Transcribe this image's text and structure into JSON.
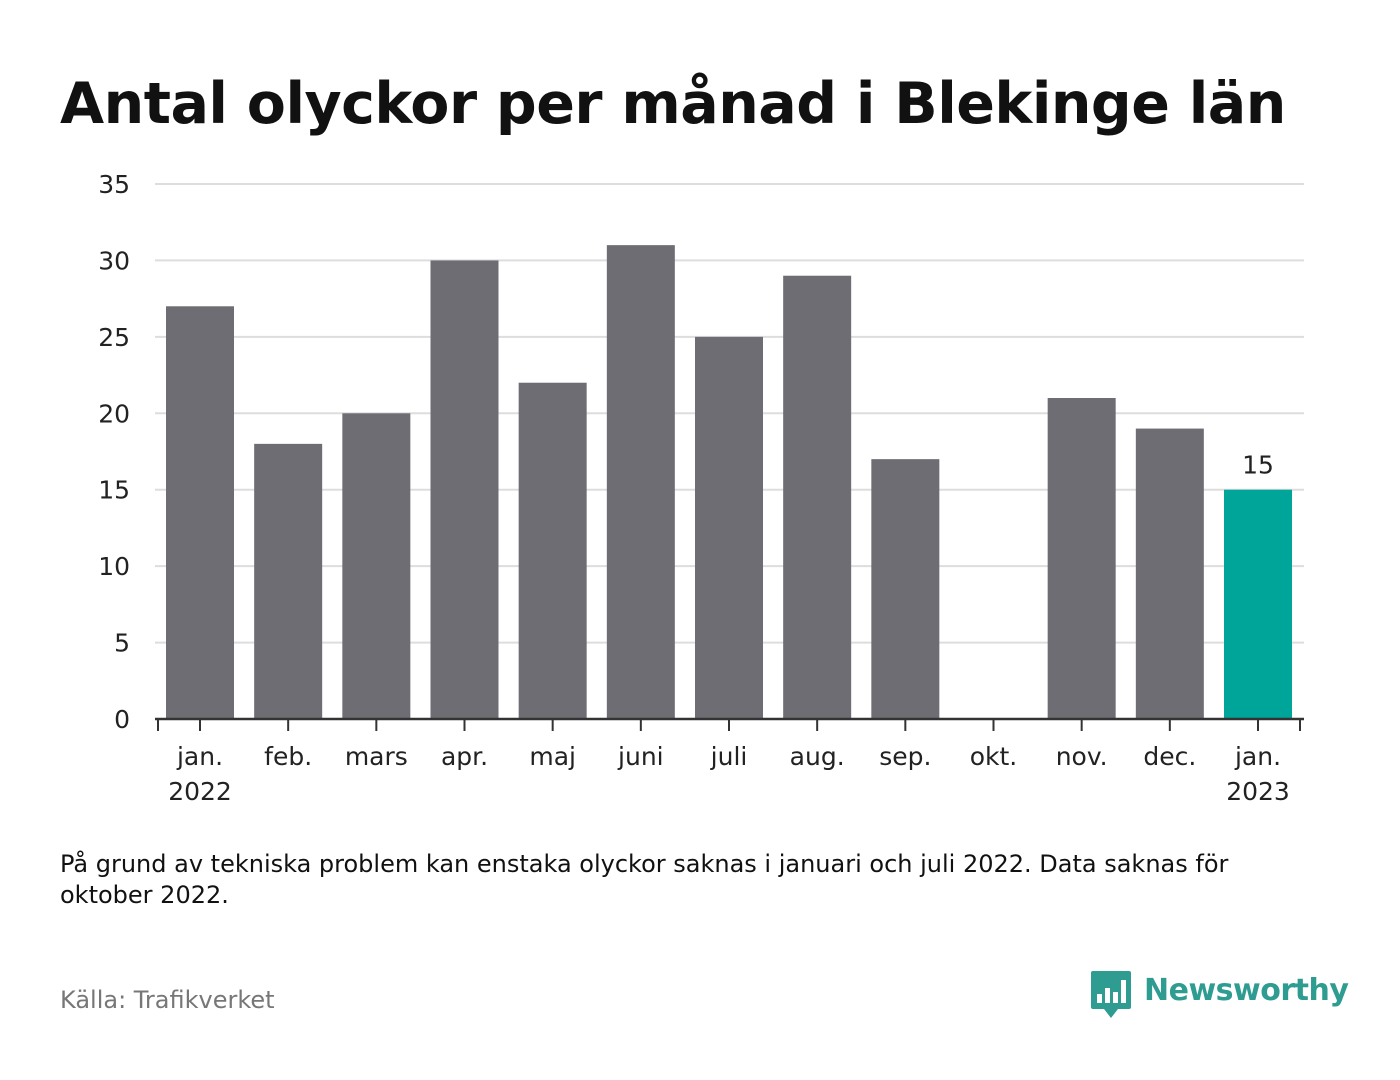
{
  "title": "Antal olyckor per månad i Blekinge län",
  "note": "På grund av tekniska problem kan enstaka olyckor saknas i januari och juli 2022. Data saknas för oktober 2022.",
  "source": "Källa: Trafikverket",
  "brand": {
    "name": "Newsworthy",
    "icon": "newsworthy-logo-icon",
    "color": "#2f9c92"
  },
  "colors": {
    "bar": "#6e6d73",
    "highlight": "#00a59a",
    "grid": "#dddddd",
    "axis": "#333333"
  },
  "chart_data": {
    "type": "bar",
    "categories": [
      [
        "jan.",
        "2022"
      ],
      [
        "feb."
      ],
      [
        "mars"
      ],
      [
        "apr."
      ],
      [
        "maj"
      ],
      [
        "juni"
      ],
      [
        "juli"
      ],
      [
        "aug."
      ],
      [
        "sep."
      ],
      [
        "okt."
      ],
      [
        "nov."
      ],
      [
        "dec."
      ],
      [
        "jan.",
        "2023"
      ]
    ],
    "values": [
      27,
      18,
      20,
      30,
      22,
      31,
      25,
      29,
      17,
      null,
      21,
      19,
      15
    ],
    "highlight_index": 12,
    "data_labels": [
      {
        "index": 12,
        "text": "15"
      }
    ],
    "ylim": [
      0,
      35
    ],
    "yticks": [
      0,
      5,
      10,
      15,
      20,
      25,
      30,
      35
    ],
    "grid": true,
    "xlabel": "",
    "ylabel": ""
  }
}
